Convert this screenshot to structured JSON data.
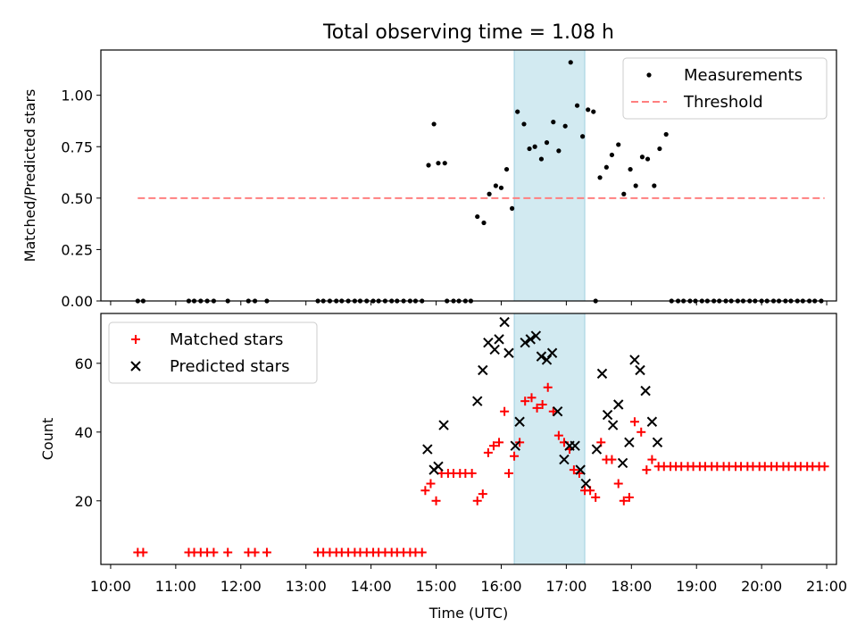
{
  "figure": {
    "title": "Total observing time = 1.08 h"
  },
  "colors": {
    "measurement": "#000000",
    "threshold": "#ff7f7f",
    "matched": "#ff0000",
    "predicted": "#000000",
    "highlight": "#add8e6"
  },
  "chart_data": [
    {
      "type": "scatter",
      "ylabel": "Matched/Predicted stars",
      "ylim": [
        0,
        1.22
      ],
      "yticks": [
        "0.00",
        "0.25",
        "0.50",
        "0.75",
        "1.00"
      ],
      "xlim": [
        "10:00",
        "21:00"
      ],
      "highlight_span": [
        "16:12",
        "17:17"
      ],
      "legend": {
        "position": "upper right",
        "entries": [
          "Measurements",
          "Threshold"
        ]
      },
      "threshold": {
        "name": "Threshold",
        "value": 0.5,
        "x": [
          "10:25",
          "20:58"
        ]
      },
      "series": [
        {
          "name": "Measurements",
          "points": [
            [
              "10:25",
              0
            ],
            [
              "10:30",
              0
            ],
            [
              "11:12",
              0
            ],
            [
              "11:17",
              0
            ],
            [
              "11:23",
              0
            ],
            [
              "11:29",
              0
            ],
            [
              "11:35",
              0
            ],
            [
              "11:48",
              0
            ],
            [
              "12:07",
              0
            ],
            [
              "12:13",
              0
            ],
            [
              "12:24",
              0
            ],
            [
              "13:11",
              0
            ],
            [
              "13:16",
              0
            ],
            [
              "13:22",
              0
            ],
            [
              "13:28",
              0
            ],
            [
              "13:33",
              0
            ],
            [
              "13:39",
              0
            ],
            [
              "13:45",
              0
            ],
            [
              "13:50",
              0
            ],
            [
              "13:56",
              0
            ],
            [
              "14:02",
              0
            ],
            [
              "14:07",
              0
            ],
            [
              "14:13",
              0
            ],
            [
              "14:19",
              0
            ],
            [
              "14:24",
              0
            ],
            [
              "14:30",
              0
            ],
            [
              "14:36",
              0
            ],
            [
              "14:41",
              0
            ],
            [
              "14:47",
              0
            ],
            [
              "14:53",
              0.66
            ],
            [
              "14:58",
              0.86
            ],
            [
              "15:02",
              0.67
            ],
            [
              "15:08",
              0.67
            ],
            [
              "15:10",
              0
            ],
            [
              "15:16",
              0
            ],
            [
              "15:21",
              0
            ],
            [
              "15:27",
              0
            ],
            [
              "15:32",
              0
            ],
            [
              "15:38",
              0.41
            ],
            [
              "15:44",
              0.38
            ],
            [
              "15:49",
              0.52
            ],
            [
              "15:55",
              0.56
            ],
            [
              "16:00",
              0.55
            ],
            [
              "16:05",
              0.64
            ],
            [
              "16:10",
              0.45
            ],
            [
              "16:15",
              0.92
            ],
            [
              "16:21",
              0.86
            ],
            [
              "16:26",
              0.74
            ],
            [
              "16:31",
              0.75
            ],
            [
              "16:37",
              0.69
            ],
            [
              "16:42",
              0.77
            ],
            [
              "16:48",
              0.87
            ],
            [
              "16:53",
              0.73
            ],
            [
              "16:59",
              0.85
            ],
            [
              "17:04",
              1.16
            ],
            [
              "17:10",
              0.95
            ],
            [
              "17:15",
              0.8
            ],
            [
              "17:20",
              0.93
            ],
            [
              "17:25",
              0.92
            ],
            [
              "17:27",
              0
            ],
            [
              "17:31",
              0.6
            ],
            [
              "17:37",
              0.65
            ],
            [
              "17:42",
              0.71
            ],
            [
              "17:48",
              0.76
            ],
            [
              "17:53",
              0.52
            ],
            [
              "17:59",
              0.64
            ],
            [
              "18:04",
              0.56
            ],
            [
              "18:10",
              0.7
            ],
            [
              "18:15",
              0.69
            ],
            [
              "18:21",
              0.56
            ],
            [
              "18:26",
              0.74
            ],
            [
              "18:32",
              0.81
            ],
            [
              "18:37",
              0
            ],
            [
              "18:43",
              0
            ],
            [
              "18:48",
              0
            ],
            [
              "18:54",
              0
            ],
            [
              "18:59",
              0
            ],
            [
              "19:05",
              0
            ],
            [
              "19:10",
              0
            ],
            [
              "19:16",
              0
            ],
            [
              "19:21",
              0
            ],
            [
              "19:27",
              0
            ],
            [
              "19:32",
              0
            ],
            [
              "19:38",
              0
            ],
            [
              "19:43",
              0
            ],
            [
              "19:49",
              0
            ],
            [
              "19:54",
              0
            ],
            [
              "20:00",
              0
            ],
            [
              "20:05",
              0
            ],
            [
              "20:11",
              0
            ],
            [
              "20:16",
              0
            ],
            [
              "20:22",
              0
            ],
            [
              "20:27",
              0
            ],
            [
              "20:33",
              0
            ],
            [
              "20:38",
              0
            ],
            [
              "20:44",
              0
            ],
            [
              "20:49",
              0
            ],
            [
              "20:55",
              0
            ]
          ]
        }
      ]
    },
    {
      "type": "scatter",
      "xlabel": "Time (UTC)",
      "ylabel": "Count",
      "ylim": [
        1.5,
        74.5
      ],
      "yticks": [
        "20",
        "40",
        "60"
      ],
      "xlim": [
        "10:00",
        "21:00"
      ],
      "xticks": [
        "10:00",
        "11:00",
        "12:00",
        "13:00",
        "14:00",
        "15:00",
        "16:00",
        "17:00",
        "18:00",
        "19:00",
        "20:00",
        "21:00"
      ],
      "highlight_span": [
        "16:12",
        "17:17"
      ],
      "legend": {
        "position": "upper left",
        "entries": [
          "Matched stars",
          "Predicted stars"
        ]
      },
      "series": [
        {
          "name": "Matched stars",
          "marker": "+",
          "points": [
            [
              "10:25",
              5
            ],
            [
              "10:30",
              5
            ],
            [
              "11:12",
              5
            ],
            [
              "11:17",
              5
            ],
            [
              "11:23",
              5
            ],
            [
              "11:29",
              5
            ],
            [
              "11:35",
              5
            ],
            [
              "11:48",
              5
            ],
            [
              "12:07",
              5
            ],
            [
              "12:13",
              5
            ],
            [
              "12:24",
              5
            ],
            [
              "13:11",
              5
            ],
            [
              "13:16",
              5
            ],
            [
              "13:22",
              5
            ],
            [
              "13:28",
              5
            ],
            [
              "13:33",
              5
            ],
            [
              "13:39",
              5
            ],
            [
              "13:45",
              5
            ],
            [
              "13:50",
              5
            ],
            [
              "13:56",
              5
            ],
            [
              "14:02",
              5
            ],
            [
              "14:07",
              5
            ],
            [
              "14:13",
              5
            ],
            [
              "14:19",
              5
            ],
            [
              "14:24",
              5
            ],
            [
              "14:30",
              5
            ],
            [
              "14:36",
              5
            ],
            [
              "14:41",
              5
            ],
            [
              "14:47",
              5
            ],
            [
              "14:50",
              23
            ],
            [
              "14:55",
              25
            ],
            [
              "15:00",
              20
            ],
            [
              "15:05",
              28
            ],
            [
              "15:11",
              28
            ],
            [
              "15:16",
              28
            ],
            [
              "15:22",
              28
            ],
            [
              "15:27",
              28
            ],
            [
              "15:33",
              28
            ],
            [
              "15:38",
              20
            ],
            [
              "15:43",
              22
            ],
            [
              "15:48",
              34
            ],
            [
              "15:53",
              36
            ],
            [
              "15:58",
              37
            ],
            [
              "16:03",
              46
            ],
            [
              "16:07",
              28
            ],
            [
              "16:12",
              33
            ],
            [
              "16:17",
              37
            ],
            [
              "16:22",
              49
            ],
            [
              "16:28",
              50
            ],
            [
              "16:33",
              47
            ],
            [
              "16:38",
              48
            ],
            [
              "16:43",
              53
            ],
            [
              "16:48",
              46
            ],
            [
              "16:53",
              39
            ],
            [
              "16:58",
              37
            ],
            [
              "17:03",
              35
            ],
            [
              "17:07",
              29
            ],
            [
              "17:12",
              28
            ],
            [
              "17:17",
              23
            ],
            [
              "17:22",
              23
            ],
            [
              "17:27",
              21
            ],
            [
              "17:32",
              37
            ],
            [
              "17:37",
              32
            ],
            [
              "17:42",
              32
            ],
            [
              "17:48",
              25
            ],
            [
              "17:53",
              20
            ],
            [
              "17:58",
              21
            ],
            [
              "18:03",
              43
            ],
            [
              "18:09",
              40
            ],
            [
              "18:14",
              29
            ],
            [
              "18:19",
              32
            ],
            [
              "18:25",
              30
            ],
            [
              "18:30",
              30
            ],
            [
              "18:36",
              30
            ],
            [
              "18:41",
              30
            ],
            [
              "18:46",
              30
            ],
            [
              "18:52",
              30
            ],
            [
              "18:57",
              30
            ],
            [
              "19:03",
              30
            ],
            [
              "19:08",
              30
            ],
            [
              "19:14",
              30
            ],
            [
              "19:19",
              30
            ],
            [
              "19:25",
              30
            ],
            [
              "19:30",
              30
            ],
            [
              "19:36",
              30
            ],
            [
              "19:41",
              30
            ],
            [
              "19:47",
              30
            ],
            [
              "19:52",
              30
            ],
            [
              "19:58",
              30
            ],
            [
              "20:03",
              30
            ],
            [
              "20:09",
              30
            ],
            [
              "20:14",
              30
            ],
            [
              "20:20",
              30
            ],
            [
              "20:25",
              30
            ],
            [
              "20:31",
              30
            ],
            [
              "20:36",
              30
            ],
            [
              "20:42",
              30
            ],
            [
              "20:47",
              30
            ],
            [
              "20:53",
              30
            ],
            [
              "20:58",
              30
            ]
          ]
        },
        {
          "name": "Predicted stars",
          "marker": "x",
          "points": [
            [
              "14:52",
              35
            ],
            [
              "14:58",
              29
            ],
            [
              "15:02",
              30
            ],
            [
              "15:07",
              42
            ],
            [
              "15:38",
              49
            ],
            [
              "15:43",
              58
            ],
            [
              "15:48",
              66
            ],
            [
              "15:54",
              64
            ],
            [
              "15:58",
              67
            ],
            [
              "16:03",
              72
            ],
            [
              "16:07",
              63
            ],
            [
              "16:13",
              36
            ],
            [
              "16:17",
              43
            ],
            [
              "16:22",
              66
            ],
            [
              "16:27",
              67
            ],
            [
              "16:32",
              68
            ],
            [
              "16:37",
              62
            ],
            [
              "16:42",
              61
            ],
            [
              "16:47",
              63
            ],
            [
              "16:52",
              46
            ],
            [
              "16:58",
              32
            ],
            [
              "17:03",
              36
            ],
            [
              "17:08",
              36
            ],
            [
              "17:13",
              29
            ],
            [
              "17:18",
              25
            ],
            [
              "17:28",
              35
            ],
            [
              "17:33",
              57
            ],
            [
              "17:38",
              45
            ],
            [
              "17:43",
              42
            ],
            [
              "17:48",
              48
            ],
            [
              "17:52",
              31
            ],
            [
              "17:58",
              37
            ],
            [
              "18:03",
              61
            ],
            [
              "18:08",
              58
            ],
            [
              "18:13",
              52
            ],
            [
              "18:19",
              43
            ],
            [
              "18:24",
              37
            ]
          ]
        }
      ]
    }
  ]
}
